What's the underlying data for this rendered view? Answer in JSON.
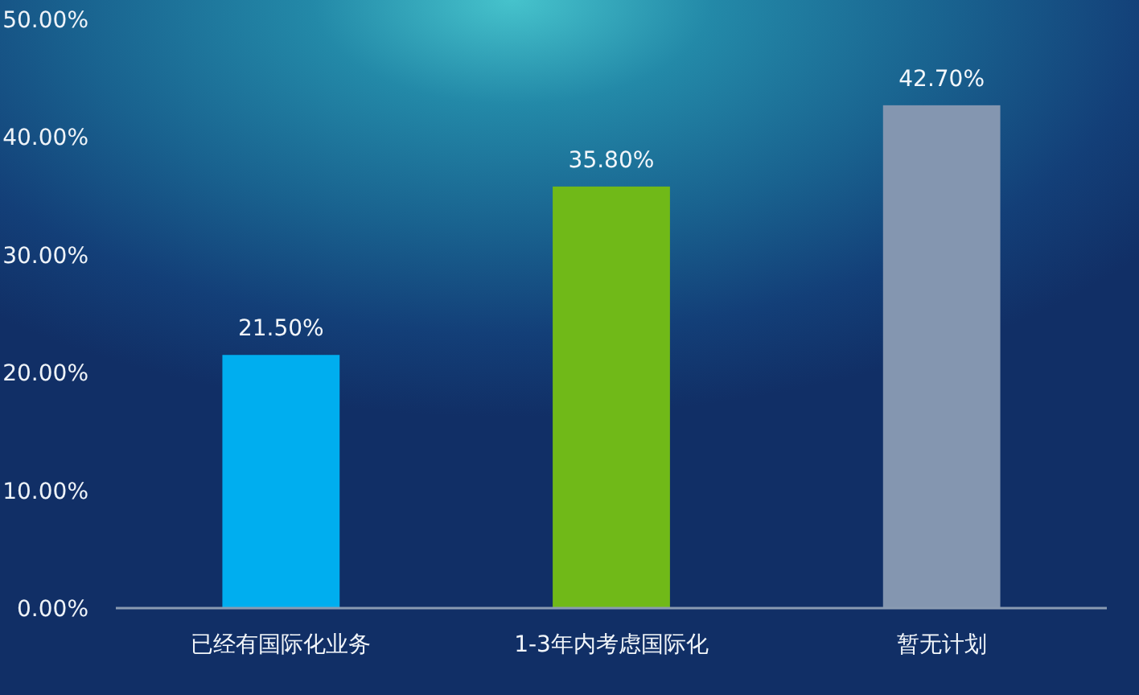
{
  "chart_data": {
    "type": "bar",
    "categories": [
      "已经有国际化业务",
      "1-3年内考虑国际化",
      "暂无计划"
    ],
    "values": [
      21.5,
      35.8,
      42.7
    ],
    "colors": [
      "#00aeef",
      "#70b918",
      "#8496b0"
    ],
    "value_labels": [
      "21.50%",
      "35.80%",
      "42.70%"
    ],
    "ylim": [
      0,
      50
    ],
    "yticks": [
      {
        "value": 0,
        "label": "0.00%"
      },
      {
        "value": 10,
        "label": "10.00%"
      },
      {
        "value": 20,
        "label": "20.00%"
      },
      {
        "value": 30,
        "label": "30.00%"
      },
      {
        "value": 40,
        "label": "40.00%"
      },
      {
        "value": 50,
        "label": "50.00%"
      }
    ]
  }
}
